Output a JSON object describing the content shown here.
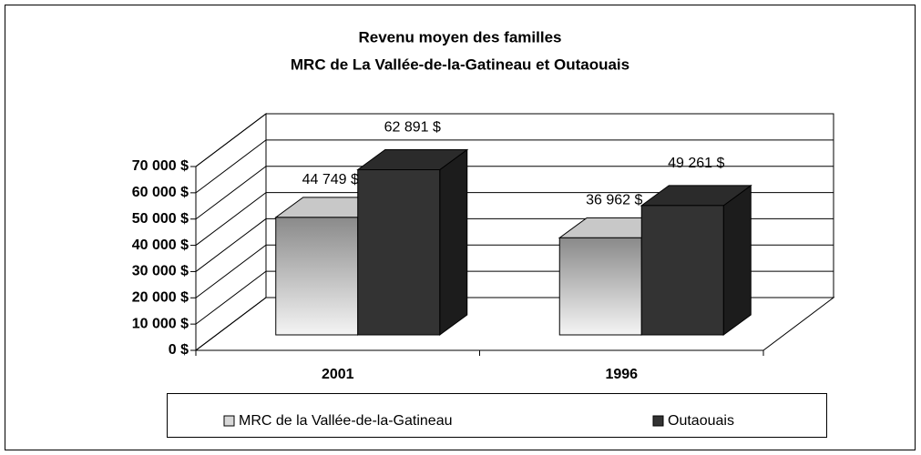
{
  "chart_data": {
    "type": "bar3d",
    "title": "Revenu moyen des familles",
    "subtitle": "MRC de La Vallée-de-la-Gatineau et Outaouais",
    "categories": [
      "2001",
      "1996"
    ],
    "series": [
      {
        "name": "MRC de la Vallée-de-la-Gatineau",
        "color": "#9a9a9a",
        "values": [
          44749,
          36962
        ],
        "value_labels": [
          "44 749 $",
          "36 962 $"
        ]
      },
      {
        "name": "Outaouais",
        "color": "#333333",
        "values": [
          62891,
          49261
        ],
        "value_labels": [
          "62 891 $",
          "49 261 $"
        ]
      }
    ],
    "ylim": [
      0,
      70000
    ],
    "yticks": [
      {
        "value": 0,
        "label": "0 $"
      },
      {
        "value": 10000,
        "label": "10 000 $"
      },
      {
        "value": 20000,
        "label": "20 000 $"
      },
      {
        "value": 30000,
        "label": "30 000 $"
      },
      {
        "value": 40000,
        "label": "40 000 $"
      },
      {
        "value": 50000,
        "label": "50 000 $"
      },
      {
        "value": 60000,
        "label": "60 000 $"
      },
      {
        "value": 70000,
        "label": "70 000 $"
      }
    ],
    "grid": true,
    "legend": "bottom"
  }
}
